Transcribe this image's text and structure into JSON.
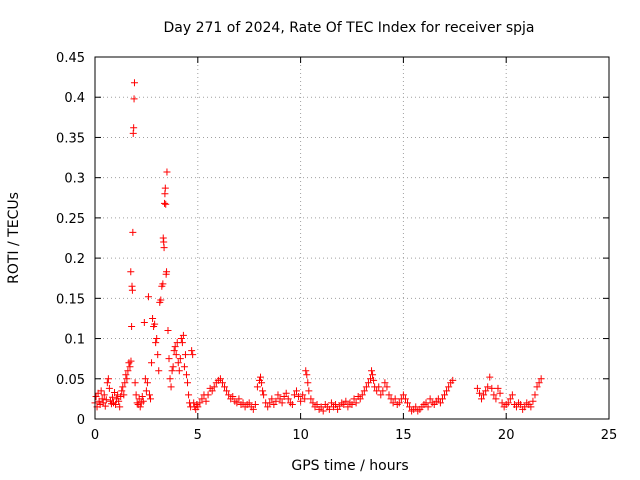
{
  "chart_data": {
    "type": "scatter",
    "title": "Day 271 of 2024, Rate Of TEC Index for receiver spja",
    "xlabel": "GPS time / hours",
    "ylabel": "ROTI / TECUs",
    "xlim": [
      0,
      25
    ],
    "ylim": [
      0,
      0.45
    ],
    "xticks": [
      0,
      5,
      10,
      15,
      20,
      25
    ],
    "yticks": [
      0,
      0.05,
      0.1,
      0.15,
      0.2,
      0.25,
      0.3,
      0.35,
      0.4,
      0.45
    ],
    "xtick_labels": [
      "0",
      "5",
      "10",
      "15",
      "20",
      "25"
    ],
    "ytick_labels": [
      "0",
      "0.05",
      "0.1",
      "0.15",
      "0.2",
      "0.25",
      "0.3",
      "0.35",
      "0.4",
      "0.45"
    ],
    "grid": true,
    "marker": "plus",
    "color": "#ff0000",
    "series": [
      {
        "name": "ROTI",
        "points": [
          [
            0.0,
            0.02
          ],
          [
            0.05,
            0.028
          ],
          [
            0.1,
            0.015
          ],
          [
            0.15,
            0.032
          ],
          [
            0.2,
            0.022
          ],
          [
            0.25,
            0.018
          ],
          [
            0.3,
            0.035
          ],
          [
            0.35,
            0.025
          ],
          [
            0.4,
            0.02
          ],
          [
            0.45,
            0.03
          ],
          [
            0.5,
            0.016
          ],
          [
            0.55,
            0.024
          ],
          [
            0.6,
            0.045
          ],
          [
            0.65,
            0.05
          ],
          [
            0.7,
            0.038
          ],
          [
            0.75,
            0.022
          ],
          [
            0.8,
            0.019
          ],
          [
            0.85,
            0.027
          ],
          [
            0.9,
            0.02
          ],
          [
            0.95,
            0.033
          ],
          [
            1.0,
            0.018
          ],
          [
            1.05,
            0.025
          ],
          [
            1.1,
            0.03
          ],
          [
            1.15,
            0.022
          ],
          [
            1.2,
            0.015
          ],
          [
            1.25,
            0.028
          ],
          [
            1.3,
            0.035
          ],
          [
            1.35,
            0.04
          ],
          [
            1.4,
            0.03
          ],
          [
            1.45,
            0.045
          ],
          [
            1.5,
            0.055
          ],
          [
            1.55,
            0.05
          ],
          [
            1.6,
            0.06
          ],
          [
            1.65,
            0.07
          ],
          [
            1.7,
            0.065
          ],
          [
            1.75,
            0.072
          ],
          [
            1.8,
            0.165
          ],
          [
            1.82,
            0.16
          ],
          [
            1.84,
            0.232
          ],
          [
            1.86,
            0.355
          ],
          [
            1.88,
            0.362
          ],
          [
            1.9,
            0.398
          ],
          [
            1.92,
            0.418
          ],
          [
            1.78,
            0.115
          ],
          [
            1.74,
            0.183
          ],
          [
            1.95,
            0.045
          ],
          [
            2.0,
            0.03
          ],
          [
            2.05,
            0.02
          ],
          [
            2.1,
            0.018
          ],
          [
            2.15,
            0.025
          ],
          [
            2.2,
            0.015
          ],
          [
            2.25,
            0.02
          ],
          [
            2.3,
            0.028
          ],
          [
            2.35,
            0.022
          ],
          [
            2.4,
            0.12
          ],
          [
            2.45,
            0.05
          ],
          [
            2.5,
            0.035
          ],
          [
            2.55,
            0.045
          ],
          [
            2.6,
            0.152
          ],
          [
            2.65,
            0.03
          ],
          [
            2.7,
            0.025
          ],
          [
            2.75,
            0.07
          ],
          [
            2.8,
            0.125
          ],
          [
            2.85,
            0.115
          ],
          [
            2.9,
            0.118
          ],
          [
            2.95,
            0.095
          ],
          [
            3.0,
            0.1
          ],
          [
            3.05,
            0.08
          ],
          [
            3.1,
            0.06
          ],
          [
            3.15,
            0.145
          ],
          [
            3.2,
            0.148
          ],
          [
            3.25,
            0.165
          ],
          [
            3.3,
            0.168
          ],
          [
            3.32,
            0.225
          ],
          [
            3.34,
            0.22
          ],
          [
            3.36,
            0.213
          ],
          [
            3.38,
            0.268
          ],
          [
            3.4,
            0.28
          ],
          [
            3.42,
            0.287
          ],
          [
            3.44,
            0.267
          ],
          [
            3.46,
            0.18
          ],
          [
            3.48,
            0.183
          ],
          [
            3.5,
            0.307
          ],
          [
            3.55,
            0.11
          ],
          [
            3.6,
            0.075
          ],
          [
            3.65,
            0.05
          ],
          [
            3.7,
            0.04
          ],
          [
            3.75,
            0.06
          ],
          [
            3.8,
            0.065
          ],
          [
            3.85,
            0.085
          ],
          [
            3.9,
            0.09
          ],
          [
            3.95,
            0.08
          ],
          [
            4.0,
            0.095
          ],
          [
            4.05,
            0.07
          ],
          [
            4.1,
            0.06
          ],
          [
            4.15,
            0.075
          ],
          [
            4.2,
            0.1
          ],
          [
            4.25,
            0.095
          ],
          [
            4.3,
            0.104
          ],
          [
            4.35,
            0.065
          ],
          [
            4.4,
            0.08
          ],
          [
            4.45,
            0.055
          ],
          [
            4.5,
            0.045
          ],
          [
            4.55,
            0.03
          ],
          [
            4.6,
            0.02
          ],
          [
            4.65,
            0.015
          ],
          [
            4.7,
            0.085
          ],
          [
            4.75,
            0.08
          ],
          [
            4.8,
            0.02
          ],
          [
            4.85,
            0.015
          ],
          [
            4.9,
            0.012
          ],
          [
            4.95,
            0.018
          ],
          [
            5.0,
            0.015
          ],
          [
            5.1,
            0.02
          ],
          [
            5.2,
            0.025
          ],
          [
            5.3,
            0.03
          ],
          [
            5.4,
            0.022
          ],
          [
            5.5,
            0.03
          ],
          [
            5.6,
            0.038
          ],
          [
            5.7,
            0.035
          ],
          [
            5.8,
            0.04
          ],
          [
            5.9,
            0.045
          ],
          [
            6.0,
            0.048
          ],
          [
            6.1,
            0.05
          ],
          [
            6.2,
            0.045
          ],
          [
            6.3,
            0.04
          ],
          [
            6.4,
            0.035
          ],
          [
            6.5,
            0.03
          ],
          [
            6.6,
            0.025
          ],
          [
            6.7,
            0.028
          ],
          [
            6.8,
            0.022
          ],
          [
            6.9,
            0.02
          ],
          [
            7.0,
            0.025
          ],
          [
            7.1,
            0.018
          ],
          [
            7.2,
            0.02
          ],
          [
            7.3,
            0.015
          ],
          [
            7.4,
            0.018
          ],
          [
            7.5,
            0.02
          ],
          [
            7.6,
            0.015
          ],
          [
            7.7,
            0.012
          ],
          [
            7.8,
            0.018
          ],
          [
            7.9,
            0.04
          ],
          [
            8.0,
            0.048
          ],
          [
            8.05,
            0.052
          ],
          [
            8.1,
            0.045
          ],
          [
            8.15,
            0.035
          ],
          [
            8.2,
            0.03
          ],
          [
            8.3,
            0.02
          ],
          [
            8.4,
            0.015
          ],
          [
            8.5,
            0.02
          ],
          [
            8.6,
            0.025
          ],
          [
            8.7,
            0.018
          ],
          [
            8.8,
            0.022
          ],
          [
            8.9,
            0.03
          ],
          [
            9.0,
            0.025
          ],
          [
            9.1,
            0.02
          ],
          [
            9.2,
            0.028
          ],
          [
            9.3,
            0.032
          ],
          [
            9.4,
            0.025
          ],
          [
            9.5,
            0.02
          ],
          [
            9.6,
            0.018
          ],
          [
            9.7,
            0.03
          ],
          [
            9.8,
            0.035
          ],
          [
            9.9,
            0.028
          ],
          [
            10.0,
            0.022
          ],
          [
            10.1,
            0.03
          ],
          [
            10.2,
            0.025
          ],
          [
            10.25,
            0.06
          ],
          [
            10.3,
            0.055
          ],
          [
            10.35,
            0.045
          ],
          [
            10.4,
            0.035
          ],
          [
            10.5,
            0.025
          ],
          [
            10.6,
            0.02
          ],
          [
            10.7,
            0.015
          ],
          [
            10.8,
            0.018
          ],
          [
            10.9,
            0.012
          ],
          [
            11.0,
            0.015
          ],
          [
            11.1,
            0.01
          ],
          [
            11.2,
            0.018
          ],
          [
            11.3,
            0.015
          ],
          [
            11.4,
            0.012
          ],
          [
            11.5,
            0.02
          ],
          [
            11.6,
            0.015
          ],
          [
            11.7,
            0.018
          ],
          [
            11.8,
            0.012
          ],
          [
            11.9,
            0.016
          ],
          [
            12.0,
            0.02
          ],
          [
            12.1,
            0.018
          ],
          [
            12.2,
            0.022
          ],
          [
            12.3,
            0.015
          ],
          [
            12.4,
            0.02
          ],
          [
            12.5,
            0.018
          ],
          [
            12.6,
            0.025
          ],
          [
            12.7,
            0.02
          ],
          [
            12.8,
            0.028
          ],
          [
            12.9,
            0.025
          ],
          [
            13.0,
            0.03
          ],
          [
            13.1,
            0.035
          ],
          [
            13.2,
            0.04
          ],
          [
            13.3,
            0.045
          ],
          [
            13.4,
            0.05
          ],
          [
            13.45,
            0.06
          ],
          [
            13.5,
            0.055
          ],
          [
            13.55,
            0.048
          ],
          [
            13.6,
            0.04
          ],
          [
            13.7,
            0.035
          ],
          [
            13.8,
            0.04
          ],
          [
            13.9,
            0.03
          ],
          [
            14.0,
            0.035
          ],
          [
            14.1,
            0.045
          ],
          [
            14.2,
            0.04
          ],
          [
            14.3,
            0.03
          ],
          [
            14.4,
            0.025
          ],
          [
            14.5,
            0.02
          ],
          [
            14.6,
            0.025
          ],
          [
            14.7,
            0.018
          ],
          [
            14.8,
            0.02
          ],
          [
            14.9,
            0.025
          ],
          [
            15.0,
            0.03
          ],
          [
            15.1,
            0.025
          ],
          [
            15.2,
            0.02
          ],
          [
            15.3,
            0.015
          ],
          [
            15.4,
            0.01
          ],
          [
            15.5,
            0.012
          ],
          [
            15.6,
            0.015
          ],
          [
            15.7,
            0.01
          ],
          [
            15.8,
            0.012
          ],
          [
            15.9,
            0.015
          ],
          [
            16.0,
            0.018
          ],
          [
            16.1,
            0.02
          ],
          [
            16.2,
            0.015
          ],
          [
            16.3,
            0.025
          ],
          [
            16.4,
            0.02
          ],
          [
            16.5,
            0.018
          ],
          [
            16.6,
            0.022
          ],
          [
            16.7,
            0.025
          ],
          [
            16.8,
            0.02
          ],
          [
            16.9,
            0.025
          ],
          [
            17.0,
            0.03
          ],
          [
            17.1,
            0.035
          ],
          [
            17.2,
            0.04
          ],
          [
            17.3,
            0.045
          ],
          [
            17.4,
            0.048
          ],
          [
            18.6,
            0.038
          ],
          [
            18.7,
            0.032
          ],
          [
            18.8,
            0.025
          ],
          [
            18.9,
            0.03
          ],
          [
            19.0,
            0.035
          ],
          [
            19.1,
            0.04
          ],
          [
            19.2,
            0.052
          ],
          [
            19.3,
            0.038
          ],
          [
            19.4,
            0.03
          ],
          [
            19.5,
            0.025
          ],
          [
            19.6,
            0.038
          ],
          [
            19.7,
            0.032
          ],
          [
            19.8,
            0.02
          ],
          [
            19.9,
            0.015
          ],
          [
            20.0,
            0.018
          ],
          [
            20.1,
            0.02
          ],
          [
            20.2,
            0.025
          ],
          [
            20.3,
            0.03
          ],
          [
            20.4,
            0.018
          ],
          [
            20.5,
            0.015
          ],
          [
            20.6,
            0.02
          ],
          [
            20.7,
            0.018
          ],
          [
            20.8,
            0.012
          ],
          [
            20.9,
            0.015
          ],
          [
            21.0,
            0.02
          ],
          [
            21.1,
            0.018
          ],
          [
            21.2,
            0.015
          ],
          [
            21.3,
            0.022
          ],
          [
            21.4,
            0.03
          ],
          [
            21.5,
            0.04
          ],
          [
            21.6,
            0.045
          ],
          [
            21.7,
            0.05
          ]
        ]
      }
    ]
  }
}
